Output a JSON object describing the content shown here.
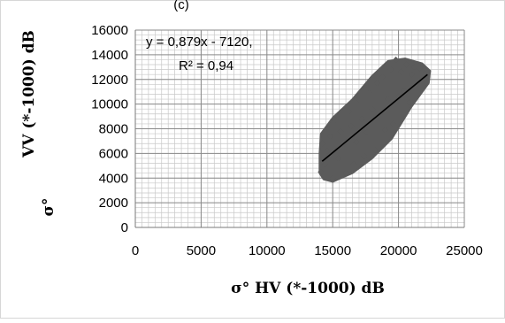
{
  "page_header": "(c)",
  "chart_data": {
    "type": "scatter",
    "title": "",
    "xlabel": "σ° HV (*-1000) dB",
    "ylabel": "σ° VV (*-1000) dB",
    "ylabel_parts": [
      "σ°",
      "VV (*-1000) dB"
    ],
    "xlim": [
      0,
      25000
    ],
    "ylim": [
      0,
      16000
    ],
    "x_ticks": [
      0,
      5000,
      10000,
      15000,
      20000,
      25000
    ],
    "y_ticks": [
      0,
      2000,
      4000,
      6000,
      8000,
      10000,
      12000,
      14000,
      16000
    ],
    "minor_grid_x_step": 500,
    "minor_grid_y_step": 400,
    "grid": true,
    "legend": "none",
    "trendline": {
      "slope": 0.879,
      "intercept": -7120,
      "x_range": [
        14200,
        22200
      ],
      "equation_label": "y = 0,879x - 7120,",
      "r2_label": "R² = 0,94"
    },
    "series": [
      {
        "points": [
          [
            14100,
            4500
          ],
          [
            14200,
            6800
          ],
          [
            14400,
            5100
          ],
          [
            14600,
            6200
          ],
          [
            14800,
            7400
          ],
          [
            15000,
            4000
          ],
          [
            15200,
            8700
          ],
          [
            15400,
            5600
          ],
          [
            15600,
            7800
          ],
          [
            15800,
            6700
          ],
          [
            16000,
            4400
          ],
          [
            16200,
            9400
          ],
          [
            16400,
            8200
          ],
          [
            16600,
            5100
          ],
          [
            16800,
            6900
          ],
          [
            17000,
            10400
          ],
          [
            17200,
            8800
          ],
          [
            17400,
            5800
          ],
          [
            17600,
            7700
          ],
          [
            17800,
            10900
          ],
          [
            18000,
            9600
          ],
          [
            18200,
            6300
          ],
          [
            18400,
            11700
          ],
          [
            18600,
            9100
          ],
          [
            18800,
            12200
          ],
          [
            19000,
            7900
          ],
          [
            19200,
            10400
          ],
          [
            19400,
            12800
          ],
          [
            19600,
            8400
          ],
          [
            19800,
            13600
          ],
          [
            20000,
            10600
          ],
          [
            20200,
            12600
          ],
          [
            20400,
            11100
          ],
          [
            20600,
            13200
          ],
          [
            20800,
            10100
          ],
          [
            21000,
            12400
          ],
          [
            21200,
            13000
          ],
          [
            21400,
            11600
          ],
          [
            21600,
            12900
          ],
          [
            22000,
            12500
          ],
          [
            22200,
            12200
          ]
        ],
        "cloud": [
          [
            14000,
            4400
          ],
          [
            14300,
            3900
          ],
          [
            15000,
            3700
          ],
          [
            16500,
            4400
          ],
          [
            18000,
            5600
          ],
          [
            19500,
            7200
          ],
          [
            21000,
            9800
          ],
          [
            22300,
            11700
          ],
          [
            22400,
            12700
          ],
          [
            21800,
            13300
          ],
          [
            20500,
            13700
          ],
          [
            19200,
            13500
          ],
          [
            18000,
            12300
          ],
          [
            16500,
            10400
          ],
          [
            15000,
            8900
          ],
          [
            14100,
            7600
          ],
          [
            14000,
            6000
          ]
        ]
      }
    ],
    "marker_color": "#5b5b5b",
    "line_color": "#000000",
    "grid_color": "#c8c8c8"
  }
}
